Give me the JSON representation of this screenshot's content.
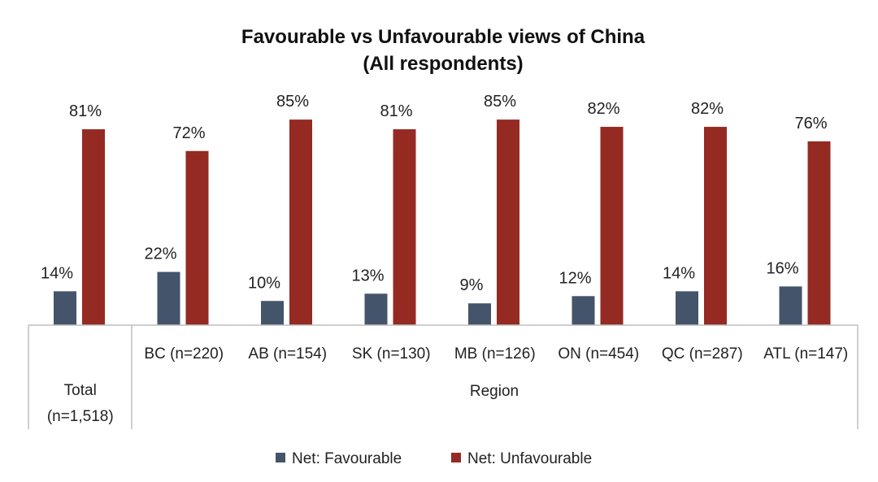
{
  "chart_data": {
    "type": "bar",
    "title": "Favourable vs Unfavourable views of China",
    "subtitle": "(All respondents)",
    "categories": [
      "Total (n=1,518)",
      "BC (n=220)",
      "AB (n=154)",
      "SK (n=130)",
      "MB (n=126)",
      "ON (n=454)",
      "QC (n=287)",
      "ATL (n=147)"
    ],
    "category_lines": [
      [
        "Total",
        "(n=1,518)"
      ],
      [
        "BC (n=220)"
      ],
      [
        "AB (n=154)"
      ],
      [
        "SK (n=130)"
      ],
      [
        "MB (n=126)"
      ],
      [
        "ON (n=454)"
      ],
      [
        "QC (n=287)"
      ],
      [
        "ATL (n=147)"
      ]
    ],
    "group_label": "Region",
    "series": [
      {
        "name": "Net: Favourable",
        "color": "#44546a",
        "values": [
          14,
          22,
          10,
          13,
          9,
          12,
          14,
          16
        ],
        "labels": [
          "14%",
          "22%",
          "10%",
          "13%",
          "9%",
          "12%",
          "14%",
          "16%"
        ]
      },
      {
        "name": "Net: Unfavourable",
        "color": "#952a22",
        "values": [
          81,
          72,
          85,
          81,
          85,
          82,
          82,
          76
        ],
        "labels": [
          "81%",
          "72%",
          "85%",
          "81%",
          "85%",
          "82%",
          "82%",
          "76%"
        ]
      }
    ],
    "ylim": [
      0,
      100
    ],
    "grid": false,
    "legend_position": "bottom"
  }
}
